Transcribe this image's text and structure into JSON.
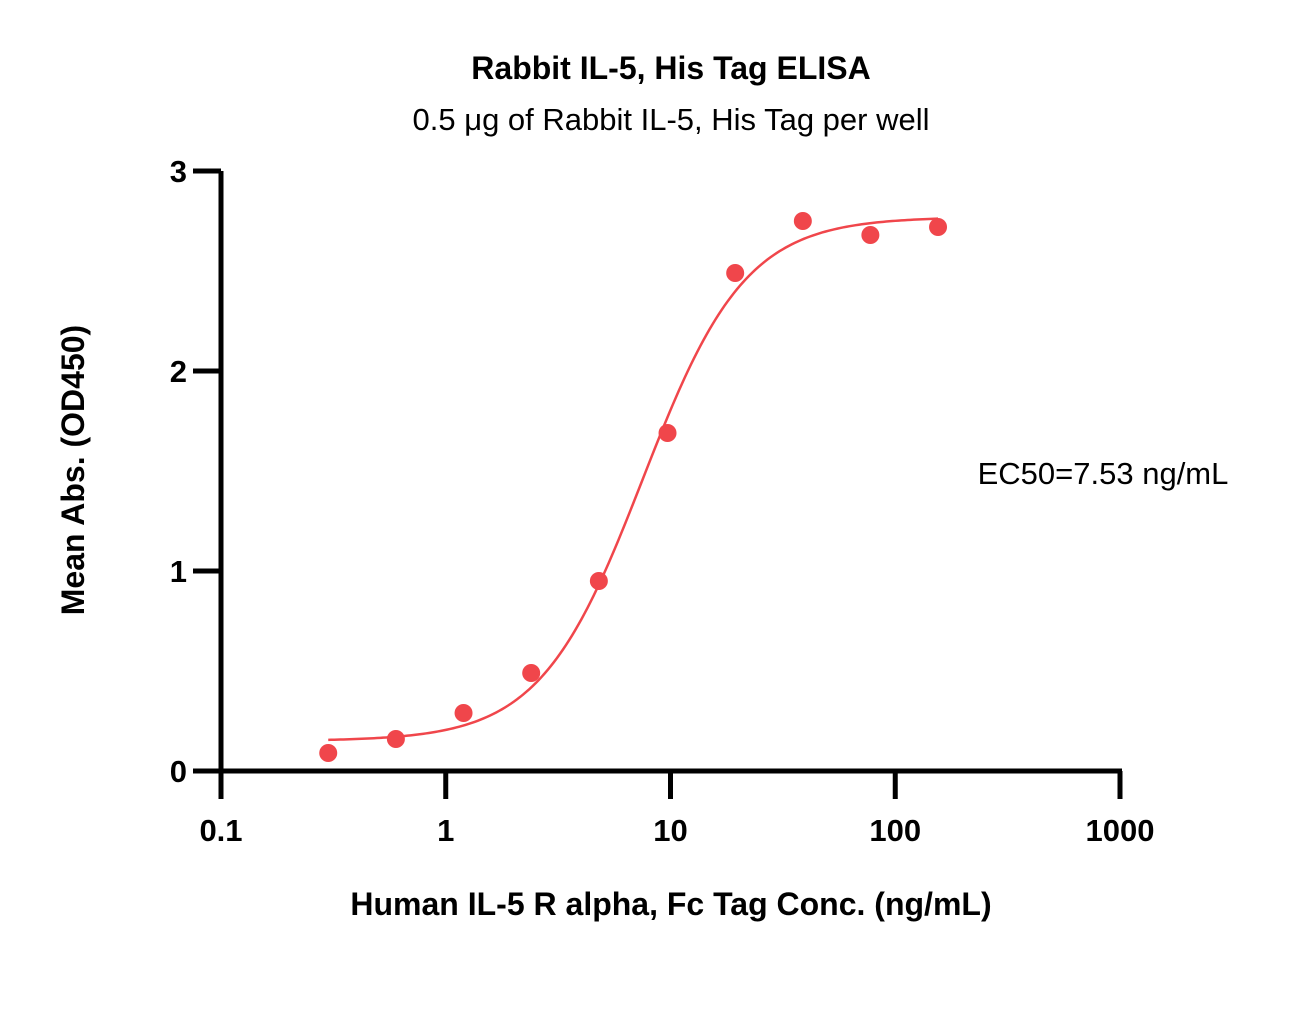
{
  "chart_data": {
    "type": "scatter",
    "title": "Rabbit IL-5, His Tag ELISA",
    "subtitle": "0.5 μg of Rabbit IL-5, His Tag per well",
    "xlabel": "Human IL-5 R alpha, Fc Tag Conc. (ng/mL)",
    "ylabel": "Mean Abs. (OD450)",
    "x_scale": "log",
    "xlim": [
      0.1,
      1000
    ],
    "ylim": [
      0,
      3
    ],
    "x_ticks": [
      0.1,
      1,
      10,
      100,
      1000
    ],
    "x_tick_labels": [
      "0.1",
      "1",
      "10",
      "100",
      "1000"
    ],
    "y_ticks": [
      0,
      1,
      2,
      3
    ],
    "y_tick_labels": [
      "0",
      "1",
      "2",
      "3"
    ],
    "grid": false,
    "color": "#f0464b",
    "points": [
      {
        "x": 0.3,
        "y": 0.09
      },
      {
        "x": 0.6,
        "y": 0.16
      },
      {
        "x": 1.2,
        "y": 0.29
      },
      {
        "x": 2.4,
        "y": 0.49
      },
      {
        "x": 4.8,
        "y": 0.95
      },
      {
        "x": 9.7,
        "y": 1.69
      },
      {
        "x": 19.4,
        "y": 2.49
      },
      {
        "x": 38.8,
        "y": 2.75
      },
      {
        "x": 77.5,
        "y": 2.68
      },
      {
        "x": 155,
        "y": 2.72
      }
    ],
    "fit": {
      "model": "4PL",
      "bottom": 0.15,
      "top": 2.77,
      "ec50": 7.53,
      "hill": 1.9,
      "x_range": [
        0.3,
        155
      ]
    },
    "annotation": "EC50=7.53 ng/mL"
  }
}
